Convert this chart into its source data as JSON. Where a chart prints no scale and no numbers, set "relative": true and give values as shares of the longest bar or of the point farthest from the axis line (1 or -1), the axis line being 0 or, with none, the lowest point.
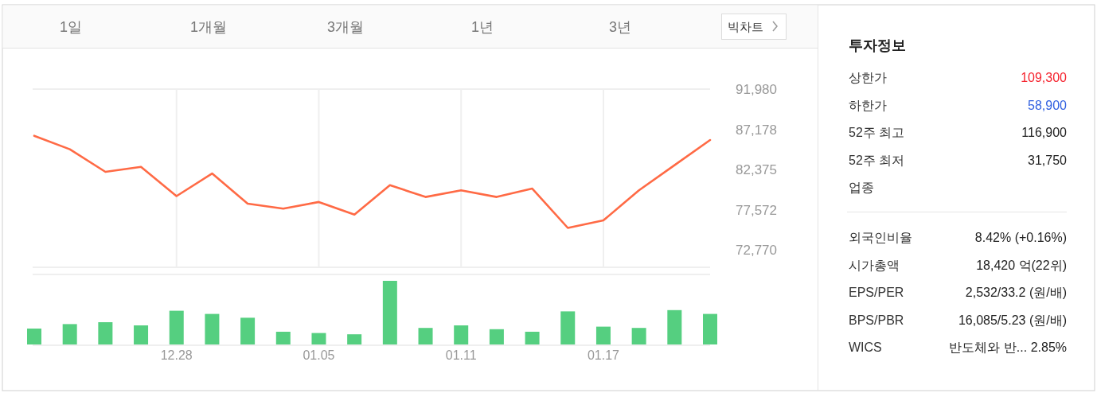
{
  "chart_data": [
    {
      "type": "other",
      "categories": [
        "1일",
        "1개월",
        "3개월",
        "1년",
        "3년"
      ],
      "annotations": [
        "빅차트"
      ]
    },
    {
      "type": "line",
      "categories": [
        null,
        null,
        null,
        null,
        "12.28",
        null,
        null,
        null,
        "01.05",
        null,
        null,
        null,
        "01.11",
        null,
        null,
        null,
        "01.17",
        null,
        null,
        null
      ],
      "series": [
        {
          "color": "#ff6a45",
          "values": [
            86400,
            84800,
            82100,
            82700,
            79200,
            81900,
            78300,
            77700,
            78500,
            77000,
            80500,
            79100,
            79900,
            79100,
            80100,
            75400,
            76300,
            79900,
            82900,
            85900
          ]
        }
      ],
      "ylim": [
        70700,
        91980
      ],
      "yticks": [
        {
          "value": 72770,
          "label": "72,770"
        },
        {
          "value": 77572,
          "label": "77,572"
        },
        {
          "value": 82375,
          "label": "82,375"
        },
        {
          "value": 87178,
          "label": "87,178"
        },
        {
          "value": 91980,
          "label": "91,980"
        }
      ],
      "grid": "x",
      "tick_labels": "y",
      "marker": "none",
      "line_style": "solid"
    },
    {
      "type": "bar",
      "relative": true,
      "categories": [
        null,
        null,
        null,
        null,
        "12.28",
        null,
        null,
        null,
        "01.05",
        null,
        null,
        null,
        "01.11",
        null,
        null,
        null,
        "01.17",
        null,
        null,
        null
      ],
      "series": [
        {
          "color": "#55cf80",
          "values": [
            0.25,
            0.32,
            0.35,
            0.3,
            0.53,
            0.48,
            0.42,
            0.2,
            0.18,
            0.16,
            1,
            0.26,
            0.3,
            0.24,
            0.2,
            0.52,
            0.28,
            0.26,
            0.54,
            0.48
          ]
        }
      ]
    },
    {
      "type": "other",
      "title": "투자정보",
      "categories": [
        "상한가",
        "하한가",
        "52주 최고",
        "52주 최저",
        "업종",
        "외국인비율",
        "시가총액",
        "EPS/PER",
        "BPS/PBR",
        "WICS"
      ],
      "value_labels": [
        "109,300",
        "58,900",
        "116,900",
        "31,750",
        null,
        "8.42% (+0.16%)",
        "18,420 억(22위)",
        "2,532/33.2 (원/배)",
        "16,085/5.23 (원/배)",
        "반도체와 반... 2.85%"
      ],
      "colors": [
        "#f5222d",
        "#2f5fe0",
        "#222222",
        "#222222",
        null,
        "#222222",
        "#222222",
        "#222222",
        "#222222",
        "#222222"
      ]
    }
  ]
}
